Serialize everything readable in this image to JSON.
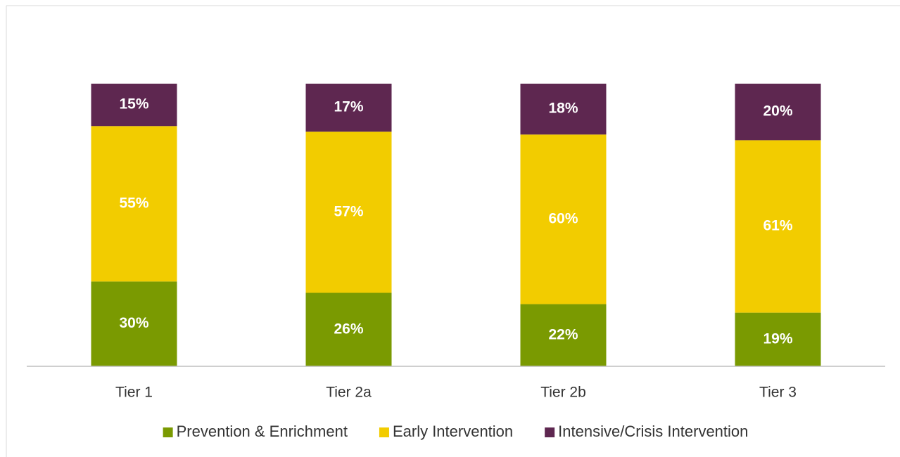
{
  "chart_data": {
    "type": "stacked_bar",
    "categories": [
      "Tier 1",
      "Tier 2a",
      "Tier 2b",
      "Tier 3"
    ],
    "series": [
      {
        "name": "Prevention & Enrichment",
        "color": "#7a9a01",
        "values": [
          30,
          26,
          22,
          19
        ],
        "value_labels": [
          "30%",
          "26%",
          "22%",
          "19%"
        ]
      },
      {
        "name": "Early Intervention",
        "color": "#f2cc00",
        "values": [
          55,
          57,
          60,
          61
        ],
        "value_labels": [
          "55%",
          "57%",
          "60%",
          "61%"
        ]
      },
      {
        "name": "Intensive/Crisis Intervention",
        "color": "#5e2750",
        "values": [
          15,
          17,
          18,
          20
        ],
        "value_labels": [
          "15%",
          "17%",
          "18%",
          "20%"
        ]
      }
    ],
    "ylim": [
      0,
      100
    ],
    "legend": "bottom"
  }
}
